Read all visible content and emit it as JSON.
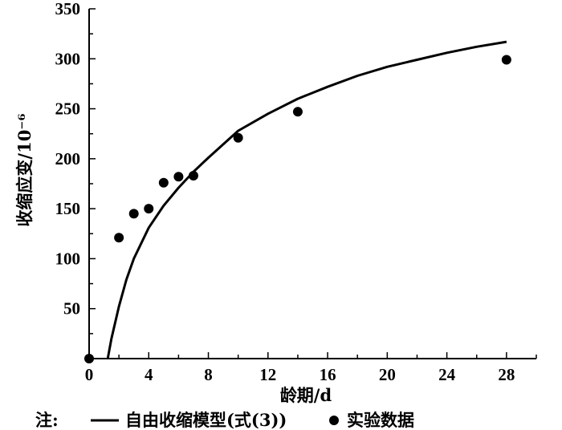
{
  "chart_data": {
    "type": "scatter",
    "xlabel": "龄期/d",
    "ylabel": "收缩应变/10⁻⁶",
    "xlim": [
      0,
      30
    ],
    "ylim": [
      0,
      350
    ],
    "x_ticks": [
      0,
      4,
      8,
      12,
      16,
      20,
      24,
      28
    ],
    "y_ticks": [
      50,
      100,
      150,
      200,
      250,
      300,
      350
    ],
    "grid": false,
    "legend_position": "bottom",
    "series": [
      {
        "name": "自由收缩模型(式(3))",
        "kind": "line",
        "color": "#000000",
        "x": [
          1.25,
          1.5,
          2,
          2.5,
          3,
          4,
          5,
          6,
          7,
          8,
          10,
          12,
          14,
          16,
          18,
          20,
          22,
          24,
          26,
          28
        ],
        "y": [
          0,
          20,
          52,
          79,
          100,
          131,
          153,
          171,
          187,
          201,
          228,
          245,
          260,
          272,
          283,
          292,
          299,
          306,
          312,
          317
        ]
      },
      {
        "name": "实验数据",
        "kind": "scatter",
        "color": "#000000",
        "x": [
          0,
          2,
          3,
          4,
          5,
          6,
          7,
          10,
          14,
          28
        ],
        "y": [
          0,
          121,
          145,
          150,
          176,
          182,
          183,
          221,
          247,
          299
        ]
      }
    ]
  },
  "legend": {
    "prefix": "注:",
    "line_label": "自由收缩模型(式(3))",
    "marker_label": "实验数据"
  }
}
